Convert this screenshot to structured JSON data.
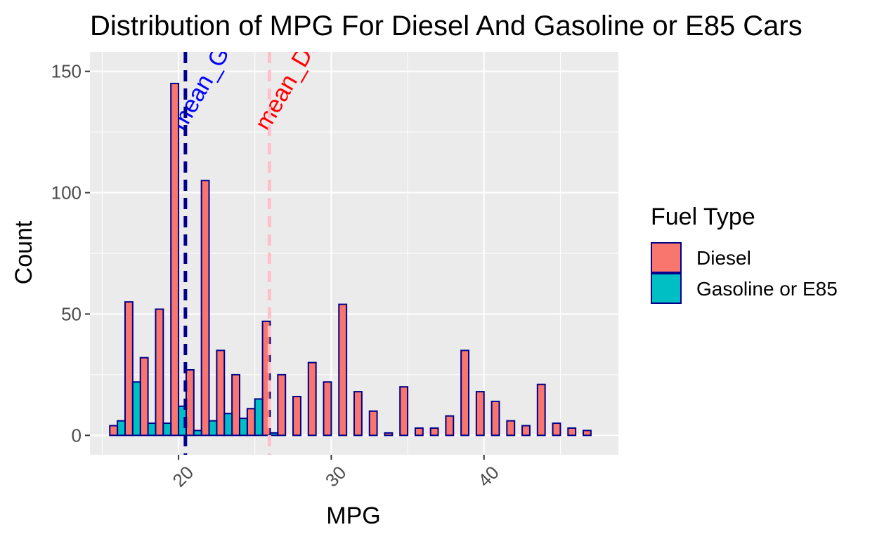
{
  "chart_data": {
    "type": "bar",
    "title": "Distribution of MPG For Diesel And Gasoline or E85 Cars",
    "xlabel": "MPG",
    "ylabel": "Count",
    "xlim": [
      14.2,
      48.8
    ],
    "ylim": [
      -8,
      158
    ],
    "x_ticks": [
      20,
      30,
      40
    ],
    "y_ticks": [
      0,
      50,
      100,
      150
    ],
    "grid": true,
    "legend": {
      "title": "Fuel Type",
      "position": "right",
      "entries": [
        {
          "name": "Diesel",
          "color": "#F8766D"
        },
        {
          "name": "Gasoline or E85",
          "color": "#00BFC4"
        }
      ]
    },
    "bin_width": 1.0,
    "bar_outline_color": "#00008B",
    "series": [
      {
        "name": "Diesel",
        "color": "#F8766D",
        "x": [
          16,
          17,
          18,
          19,
          20,
          21,
          22,
          23,
          24,
          25,
          26,
          27,
          28,
          29,
          30,
          31,
          32,
          33,
          34,
          35,
          36,
          37,
          38,
          39,
          40,
          41,
          42,
          43,
          44,
          45,
          46,
          47
        ],
        "values": [
          4,
          55,
          32,
          52,
          145,
          27,
          105,
          35,
          25,
          11,
          47,
          25,
          16,
          30,
          22,
          54,
          18,
          10,
          1,
          20,
          3,
          3,
          8,
          35,
          18,
          14,
          6,
          4,
          21,
          5,
          3,
          2
        ]
      },
      {
        "name": "Gasoline or E85",
        "color": "#00BFC4",
        "x": [
          16,
          17,
          18,
          19,
          20,
          21,
          22,
          23,
          24,
          25,
          26
        ],
        "values": [
          6,
          22,
          5,
          5,
          12,
          2,
          6,
          9,
          7,
          15,
          1
        ]
      }
    ],
    "reference_lines": [
      {
        "label": "mean_Gasoline",
        "x": 20.45,
        "line_color": "#00008B",
        "text_color": "#0000FF",
        "style": "dashed"
      },
      {
        "label": "mean_Diesel",
        "x": 25.95,
        "line_color": "#FFC0CB",
        "text_color": "#FF0000",
        "style": "dashed"
      }
    ],
    "panel_background": "#EBEBEB",
    "grid_color": "#FFFFFF"
  }
}
